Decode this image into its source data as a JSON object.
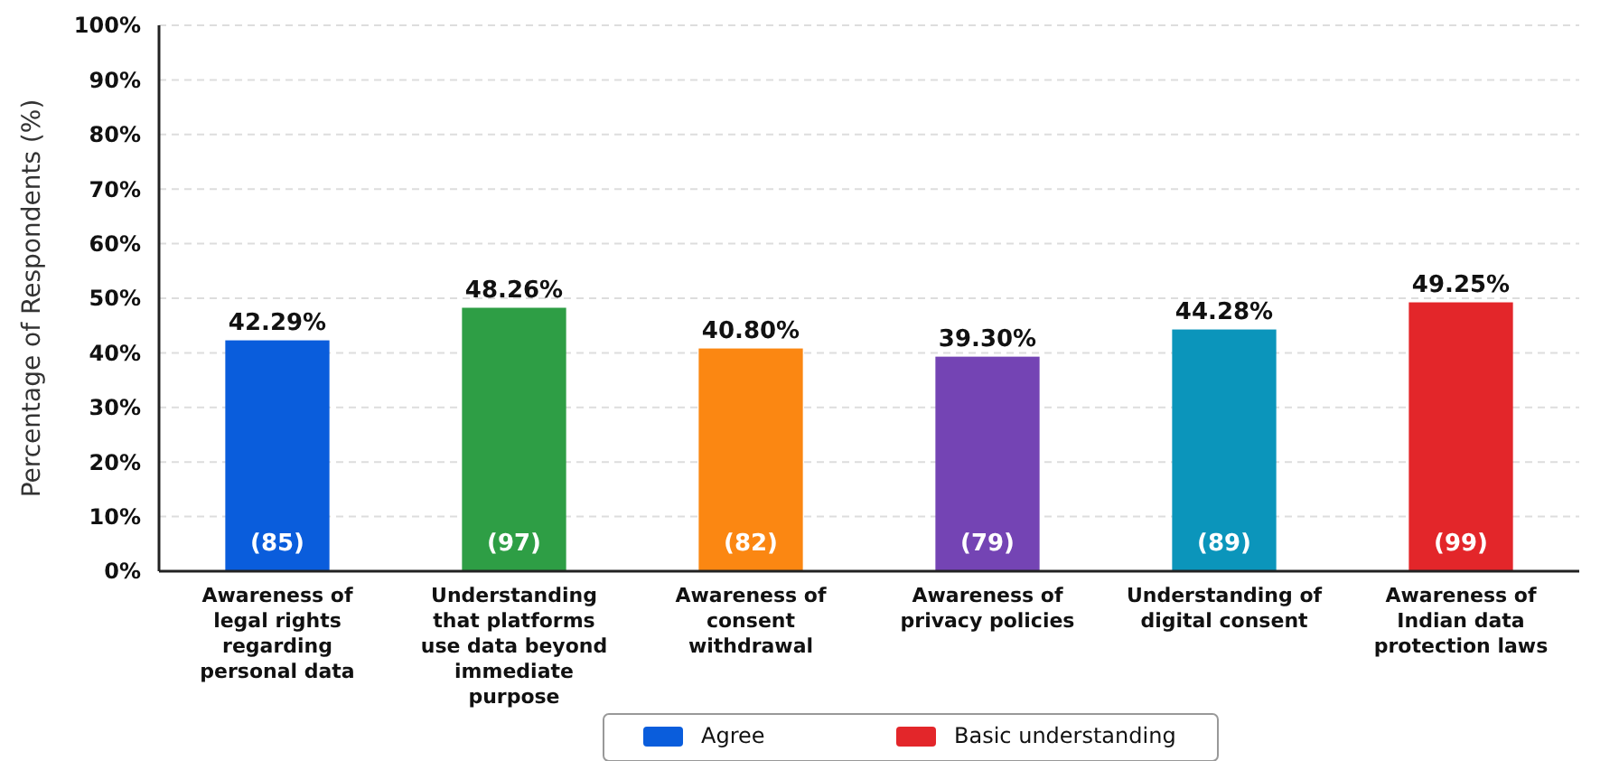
{
  "chart_data": {
    "type": "bar",
    "ylabel": "Percentage of Respondents (%)",
    "categories": [
      "Awareness of legal rights regarding personal data",
      "Understanding that platforms use data beyond immediate purpose",
      "Awareness of consent withdrawal",
      "Awareness of privacy policies",
      "Understanding of digital consent",
      "Awareness of Indian data protection laws"
    ],
    "series": [
      {
        "name": "Agree",
        "color": "#0a5ddc",
        "values": [
          42.29,
          null,
          null,
          null,
          null,
          null
        ],
        "value_labels": [
          "42.29%",
          null,
          null,
          null,
          null,
          null
        ]
      },
      {
        "colors": [
          null,
          "#2e9e45",
          "#fb8712",
          "#7444b4",
          "#0b95bb",
          null
        ],
        "values": [
          null,
          48.26,
          40.8,
          39.3,
          44.28,
          null
        ],
        "value_labels": [
          null,
          "48.26%",
          "40.80%",
          "39.30%",
          "44.28%",
          null
        ]
      },
      {
        "name": "Basic understanding",
        "color": "#e3262a",
        "values": [
          null,
          null,
          null,
          null,
          null,
          49.25
        ],
        "value_labels": [
          null,
          null,
          null,
          null,
          null,
          "49.25%"
        ]
      }
    ],
    "annotations": [
      "(85)",
      "(97)",
      "(82)",
      "(79)",
      "(89)",
      "(99)"
    ],
    "ylim": [
      0,
      100
    ],
    "yticks": [
      {
        "value": 0,
        "label": "0%"
      },
      {
        "value": 10,
        "label": "10%"
      },
      {
        "value": 20,
        "label": "20%"
      },
      {
        "value": 30,
        "label": "30%"
      },
      {
        "value": 40,
        "label": "40%"
      },
      {
        "value": 50,
        "label": "50%"
      },
      {
        "value": 60,
        "label": "60%"
      },
      {
        "value": 70,
        "label": "70%"
      },
      {
        "value": 80,
        "label": "80%"
      },
      {
        "value": 90,
        "label": "90%"
      },
      {
        "value": 100,
        "label": "100%"
      }
    ],
    "grid": "y",
    "legend": "bottom"
  }
}
